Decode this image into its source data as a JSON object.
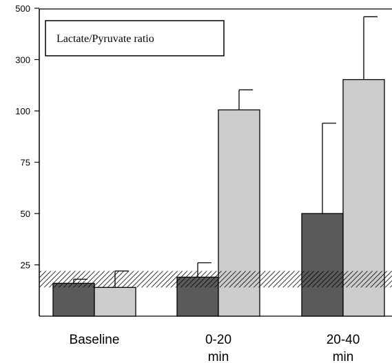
{
  "chart_data": {
    "type": "bar",
    "title": "",
    "xlabel": "",
    "ylabel": "",
    "legend_box_text": "Lactate/Pyruvate ratio",
    "y_tick_labels": [
      "25",
      "50",
      "75",
      "100",
      "300",
      "500"
    ],
    "y_tick_values": [
      25,
      50,
      75,
      100,
      300,
      500
    ],
    "y_axis_note": "broken scale: 0-100 linear, then 100-300 and 300-500 each occupy one 25-unit step",
    "ylim": [
      0,
      500
    ],
    "categories": [
      {
        "line1": "Baseline",
        "line2": ""
      },
      {
        "line1": "0-20",
        "line2": "min"
      },
      {
        "line1": "20-40",
        "line2": "min"
      }
    ],
    "series": [
      {
        "color": "#5a5a5a",
        "values": [
          16,
          19,
          50
        ],
        "error_upper": [
          18,
          26,
          94
        ]
      },
      {
        "color": "#cccccc",
        "values": [
          14,
          104,
          222
        ],
        "error_upper": [
          22,
          182,
          467
        ]
      }
    ],
    "reference_band": {
      "low": 14,
      "high": 22,
      "pattern": "diagonal-hatch"
    },
    "grid": false
  }
}
